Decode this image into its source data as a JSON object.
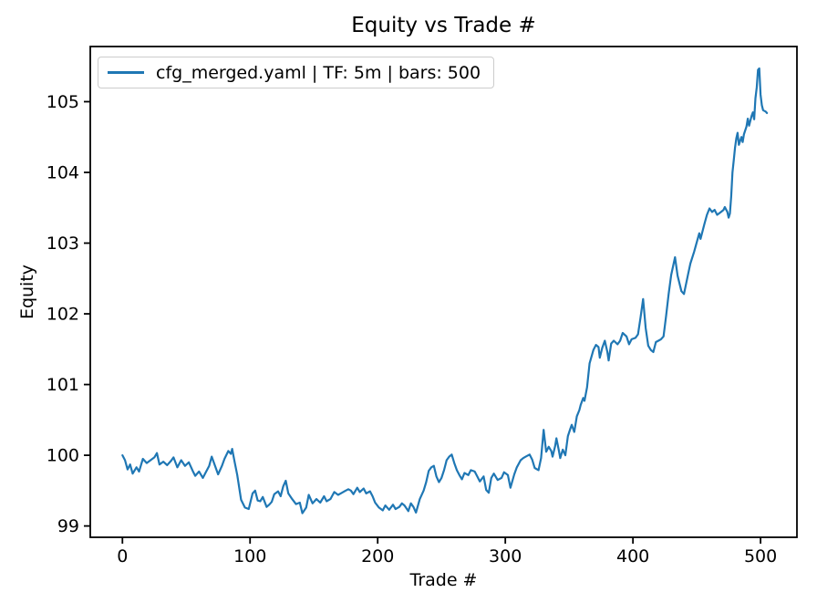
{
  "figure": {
    "background": "#ffffff"
  },
  "chart_data": {
    "type": "line",
    "title": "Equity vs Trade #",
    "xlabel": "Trade #",
    "ylabel": "Equity",
    "grid": false,
    "legend_position": "upper left",
    "line_color": "#1f77b4",
    "axis_color": "#000000",
    "legend_border_color": "#cccccc",
    "xlim": [
      -25.2,
      528.5
    ],
    "ylim": [
      98.84,
      105.78
    ],
    "xticks": [
      0,
      100,
      200,
      300,
      400,
      500
    ],
    "yticks": [
      99,
      100,
      101,
      102,
      103,
      104,
      105
    ],
    "series": [
      {
        "name": "cfg_merged.yaml | TF: 5m | bars: 500",
        "x": [
          0,
          2,
          4,
          6,
          8,
          11,
          13,
          16,
          19,
          22,
          25,
          27,
          29,
          32,
          35,
          38,
          40,
          43,
          46,
          49,
          52,
          55,
          57,
          60,
          63,
          65,
          68,
          70,
          72,
          75,
          78,
          80,
          83,
          85,
          86,
          88,
          90,
          93,
          96,
          99,
          102,
          104,
          106,
          108,
          110,
          113,
          115,
          117,
          119,
          122,
          124,
          126,
          128,
          130,
          133,
          136,
          139,
          141,
          144,
          146,
          149,
          152,
          155,
          158,
          160,
          163,
          166,
          169,
          172,
          174,
          177,
          179,
          181,
          184,
          186,
          189,
          191,
          194,
          196,
          198,
          201,
          204,
          206,
          209,
          212,
          214,
          217,
          219,
          221,
          224,
          226,
          228,
          230,
          233,
          236,
          238,
          240,
          242,
          244,
          246,
          248,
          250,
          252,
          254,
          256,
          258,
          260,
          262,
          264,
          266,
          268,
          271,
          273,
          276,
          278,
          280,
          283,
          285,
          287,
          289,
          291,
          294,
          297,
          299,
          302,
          304,
          307,
          309,
          312,
          314,
          316,
          319,
          321,
          323,
          326,
          328,
          330,
          332,
          334,
          336,
          337,
          339,
          340,
          342,
          343,
          345,
          347,
          349,
          351,
          352,
          354,
          356,
          358,
          359,
          361,
          362,
          364,
          366,
          369,
          371,
          373,
          374,
          376,
          378,
          380,
          381,
          383,
          385,
          388,
          390,
          392,
          395,
          397,
          399,
          402,
          404,
          406,
          408,
          410,
          412,
          414,
          416,
          418,
          420,
          422,
          424,
          426,
          428,
          430,
          433,
          435,
          438,
          440,
          443,
          445,
          448,
          450,
          452,
          453,
          456,
          458,
          460,
          462,
          464,
          466,
          469,
          471,
          472,
          474,
          475,
          476,
          477,
          478,
          479,
          480,
          481,
          482,
          483,
          485,
          486,
          487,
          489,
          490,
          491,
          493,
          494,
          495,
          496,
          497,
          498,
          499,
          500,
          501,
          502,
          504,
          505
        ],
        "y": [
          100.0,
          99.93,
          99.8,
          99.87,
          99.74,
          99.83,
          99.77,
          99.95,
          99.89,
          99.93,
          99.97,
          100.03,
          99.87,
          99.91,
          99.86,
          99.92,
          99.97,
          99.83,
          99.93,
          99.85,
          99.9,
          99.78,
          99.71,
          99.77,
          99.68,
          99.75,
          99.85,
          99.98,
          99.88,
          99.73,
          99.85,
          99.95,
          100.06,
          100.02,
          100.09,
          99.9,
          99.72,
          99.37,
          99.26,
          99.24,
          99.46,
          99.5,
          99.36,
          99.35,
          99.41,
          99.27,
          99.3,
          99.34,
          99.45,
          99.49,
          99.42,
          99.56,
          99.64,
          99.46,
          99.38,
          99.31,
          99.33,
          99.18,
          99.26,
          99.44,
          99.32,
          99.38,
          99.33,
          99.42,
          99.35,
          99.38,
          99.48,
          99.44,
          99.47,
          99.49,
          99.52,
          99.5,
          99.45,
          99.54,
          99.48,
          99.53,
          99.46,
          99.49,
          99.42,
          99.33,
          99.26,
          99.22,
          99.29,
          99.23,
          99.3,
          99.24,
          99.27,
          99.32,
          99.29,
          99.21,
          99.32,
          99.27,
          99.19,
          99.38,
          99.5,
          99.62,
          99.78,
          99.83,
          99.85,
          99.7,
          99.62,
          99.68,
          99.79,
          99.93,
          99.98,
          100.01,
          99.89,
          99.79,
          99.72,
          99.66,
          99.75,
          99.72,
          99.79,
          99.77,
          99.7,
          99.63,
          99.7,
          99.51,
          99.47,
          99.68,
          99.74,
          99.65,
          99.68,
          99.76,
          99.72,
          99.54,
          99.73,
          99.83,
          99.93,
          99.96,
          99.98,
          100.01,
          99.94,
          99.82,
          99.79,
          99.96,
          100.36,
          100.05,
          100.12,
          100.06,
          99.98,
          100.13,
          100.24,
          100.06,
          99.96,
          100.08,
          100.0,
          100.27,
          100.38,
          100.43,
          100.33,
          100.55,
          100.64,
          100.71,
          100.81,
          100.77,
          100.96,
          101.3,
          101.49,
          101.56,
          101.53,
          101.38,
          101.52,
          101.62,
          101.46,
          101.34,
          101.58,
          101.62,
          101.57,
          101.62,
          101.73,
          101.68,
          101.57,
          101.64,
          101.66,
          101.71,
          101.95,
          102.21,
          101.8,
          101.55,
          101.49,
          101.46,
          101.6,
          101.62,
          101.64,
          101.68,
          101.97,
          102.28,
          102.55,
          102.8,
          102.54,
          102.32,
          102.28,
          102.54,
          102.71,
          102.88,
          103.01,
          103.14,
          103.06,
          103.27,
          103.4,
          103.49,
          103.44,
          103.47,
          103.4,
          103.44,
          103.47,
          103.51,
          103.44,
          103.36,
          103.42,
          103.66,
          104.0,
          104.17,
          104.35,
          104.48,
          104.56,
          104.39,
          104.5,
          104.43,
          104.54,
          104.65,
          104.76,
          104.66,
          104.8,
          104.85,
          104.75,
          105.05,
          105.2,
          105.45,
          105.47,
          105.1,
          104.95,
          104.88,
          104.86,
          104.84
        ]
      }
    ]
  }
}
